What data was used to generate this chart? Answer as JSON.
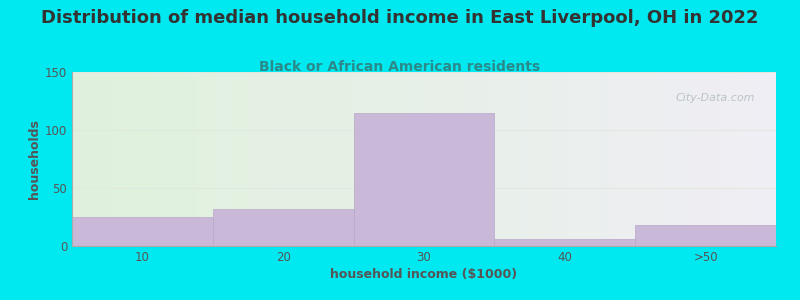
{
  "title": "Distribution of median household income in East Liverpool, OH in 2022",
  "subtitle": "Black or African American residents",
  "xlabel": "household income ($1000)",
  "ylabel": "households",
  "bar_labels": [
    "10",
    "20",
    "30",
    "40",
    ">50"
  ],
  "bar_values": [
    25,
    32,
    115,
    6,
    18
  ],
  "bar_color": "#c9b8d8",
  "bar_edge_color": "#b8a8c8",
  "ylim": [
    0,
    150
  ],
  "yticks": [
    0,
    50,
    100,
    150
  ],
  "background_outer": "#00e8f0",
  "background_plot_left": "#dff2dc",
  "background_plot_right": "#f0eef5",
  "title_fontsize": 13,
  "subtitle_fontsize": 10,
  "axis_label_fontsize": 9,
  "tick_fontsize": 8.5,
  "title_color": "#333333",
  "subtitle_color": "#2a8a8a",
  "tick_color": "#555555",
  "axis_label_color": "#555555",
  "watermark_text": "City-Data.com",
  "watermark_color": "#b0bcc0",
  "grid_color": "#e0e8e0",
  "bar_positions": [
    0.5,
    1.5,
    2.5,
    3.5,
    4.5
  ],
  "bar_width": 1.0,
  "xlim": [
    0,
    5
  ]
}
